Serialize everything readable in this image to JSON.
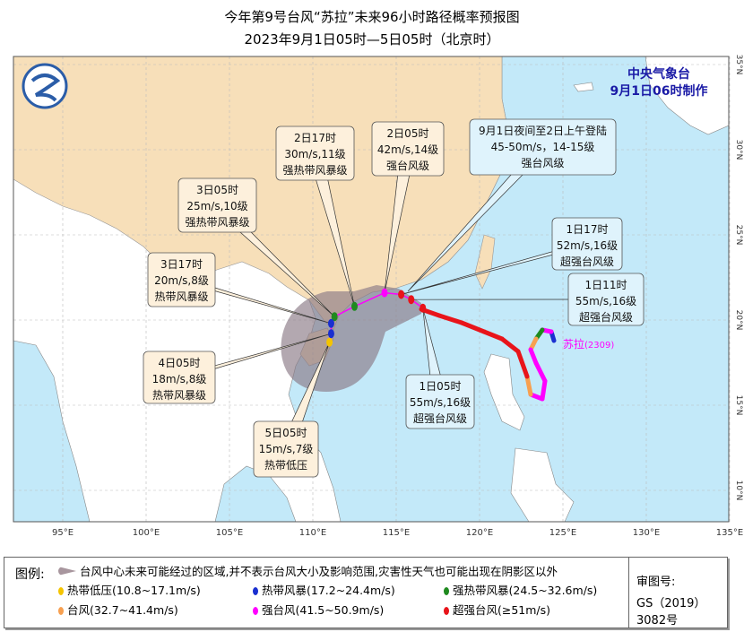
{
  "title": "今年第9号台风“苏拉”未来96小时路径概率预报图",
  "subtitle": "2023年9月1日05时—5日05时（北京时）",
  "agency": "中央气象台",
  "issued": "9月1日06时制作",
  "typhoon_label": "苏拉",
  "typhoon_code": "(2309)",
  "lon_ticks": [
    "95°E",
    "100°E",
    "105°E",
    "110°E",
    "115°E",
    "120°E",
    "125°E",
    "130°E",
    "135°E"
  ],
  "lat_ticks": [
    "35°N",
    "30°N",
    "25°N",
    "20°N",
    "15°N",
    "10°N"
  ],
  "callouts": [
    {
      "time": "1日05时",
      "wind": "55m/s,16级",
      "level": "超强台风级"
    },
    {
      "time": "1日11时",
      "wind": "55m/s,16级",
      "level": "超强台风级"
    },
    {
      "time": "1日17时",
      "wind": "52m/s,16级",
      "level": "超强台风级"
    },
    {
      "time": "9月1日夜间至2日上午登陆",
      "wind": "45-50m/s，14-15级",
      "level": "强台风级"
    },
    {
      "time": "2日05时",
      "wind": "42m/s,14级",
      "level": "强台风级"
    },
    {
      "time": "2日17时",
      "wind": "30m/s,11级",
      "level": "强热带风暴级"
    },
    {
      "time": "3日05时",
      "wind": "25m/s,10级",
      "level": "强热带风暴级"
    },
    {
      "time": "3日17时",
      "wind": "20m/s,8级",
      "level": "热带风暴级"
    },
    {
      "time": "4日05时",
      "wind": "18m/s,8级",
      "level": "热带风暴级"
    },
    {
      "time": "5日05时",
      "wind": "15m/s,7级",
      "level": "热带低压"
    }
  ],
  "forecast_points": [
    {
      "time": "1日05时",
      "lon": 116.6,
      "lat": 20.7,
      "category": "super_typhoon"
    },
    {
      "time": "1日11时",
      "lon": 115.9,
      "lat": 21.2,
      "category": "super_typhoon"
    },
    {
      "time": "1日17时",
      "lon": 115.3,
      "lat": 21.5,
      "category": "super_typhoon"
    },
    {
      "time": "2日05时",
      "lon": 114.3,
      "lat": 21.6,
      "category": "severe_typhoon"
    },
    {
      "time": "2日17时",
      "lon": 112.5,
      "lat": 20.8,
      "category": "severe_tropical_storm"
    },
    {
      "time": "3日05时",
      "lon": 111.3,
      "lat": 20.2,
      "category": "severe_tropical_storm"
    },
    {
      "time": "3日17时",
      "lon": 111.1,
      "lat": 19.8,
      "category": "tropical_storm"
    },
    {
      "time": "4日05时",
      "lon": 111.1,
      "lat": 19.2,
      "category": "tropical_storm"
    },
    {
      "time": "5日05时",
      "lon": 111.0,
      "lat": 18.7,
      "category": "tropical_depression"
    }
  ],
  "legend": {
    "heading": "图例:",
    "cone_text": "台风中心未来可能经过的区域,并不表示台风大小及影响范围,灾害性天气也可能出现在阴影区以外",
    "items": [
      {
        "label": "热带低压(10.8~17.1m/s)",
        "color": "#f5c400"
      },
      {
        "label": "热带风暴(17.2~24.4m/s)",
        "color": "#1a2fd0"
      },
      {
        "label": "强热带风暴(24.5~32.6m/s)",
        "color": "#1f8a1f"
      },
      {
        "label": "台风(32.7~41.4m/s)",
        "color": "#f7a050"
      },
      {
        "label": "强台风(41.5~50.9m/s)",
        "color": "#ff00ff"
      },
      {
        "label": "超强台风(≥51m/s)",
        "color": "#e8141a"
      }
    ]
  },
  "review": {
    "label": "审图号:",
    "number": "GS（2019）3082号"
  }
}
